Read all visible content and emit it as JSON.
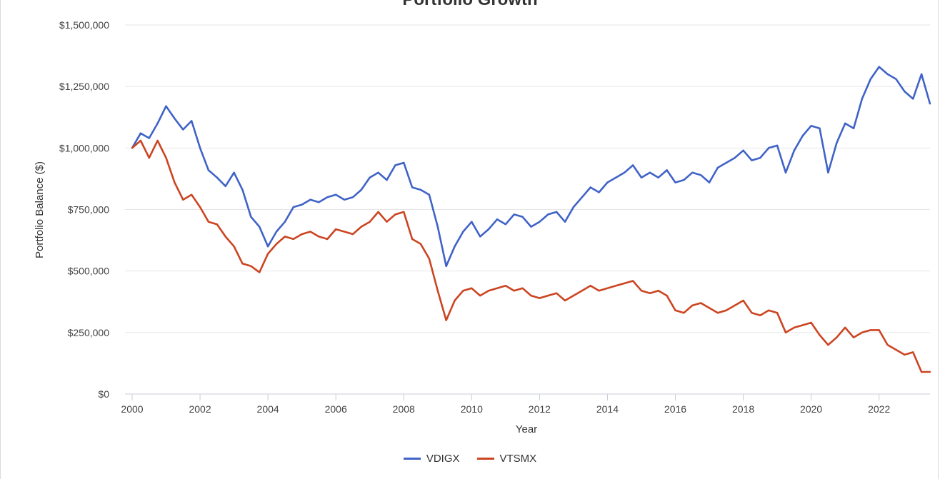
{
  "chart_data": {
    "type": "line",
    "title": "Portfolio Growth",
    "xlabel": "Year",
    "ylabel": "Portfolio Balance ($)",
    "xlim": [
      2000,
      2023.5
    ],
    "ylim": [
      0,
      1500000
    ],
    "x_ticks": [
      "2000",
      "2002",
      "2004",
      "2006",
      "2008",
      "2010",
      "2012",
      "2014",
      "2016",
      "2018",
      "2020",
      "2022"
    ],
    "y_ticks": [
      "$0",
      "$250,000",
      "$500,000",
      "$750,000",
      "$1,000,000",
      "$1,250,000",
      "$1,500,000"
    ],
    "grid": true,
    "legend_position": "bottom",
    "x": [
      2000.0,
      2000.25,
      2000.5,
      2000.75,
      2001.0,
      2001.25,
      2001.5,
      2001.75,
      2002.0,
      2002.25,
      2002.5,
      2002.75,
      2003.0,
      2003.25,
      2003.5,
      2003.75,
      2004.0,
      2004.25,
      2004.5,
      2004.75,
      2005.0,
      2005.25,
      2005.5,
      2005.75,
      2006.0,
      2006.25,
      2006.5,
      2006.75,
      2007.0,
      2007.25,
      2007.5,
      2007.75,
      2008.0,
      2008.25,
      2008.5,
      2008.75,
      2009.0,
      2009.25,
      2009.5,
      2009.75,
      2010.0,
      2010.25,
      2010.5,
      2010.75,
      2011.0,
      2011.25,
      2011.5,
      2011.75,
      2012.0,
      2012.25,
      2012.5,
      2012.75,
      2013.0,
      2013.25,
      2013.5,
      2013.75,
      2014.0,
      2014.25,
      2014.5,
      2014.75,
      2015.0,
      2015.25,
      2015.5,
      2015.75,
      2016.0,
      2016.25,
      2016.5,
      2016.75,
      2017.0,
      2017.25,
      2017.5,
      2017.75,
      2018.0,
      2018.25,
      2018.5,
      2018.75,
      2019.0,
      2019.25,
      2019.5,
      2019.75,
      2020.0,
      2020.25,
      2020.5,
      2020.75,
      2021.0,
      2021.25,
      2021.5,
      2021.75,
      2022.0,
      2022.25,
      2022.5,
      2022.75,
      2023.0,
      2023.25,
      2023.5
    ],
    "series": [
      {
        "name": "VDIGX",
        "color": "#4063c7",
        "values": [
          1000000,
          1060000,
          1040000,
          1100000,
          1170000,
          1120000,
          1075000,
          1110000,
          1000000,
          910000,
          880000,
          845000,
          900000,
          830000,
          720000,
          680000,
          600000,
          660000,
          700000,
          760000,
          770000,
          790000,
          780000,
          800000,
          810000,
          790000,
          800000,
          830000,
          880000,
          900000,
          870000,
          930000,
          940000,
          840000,
          830000,
          810000,
          680000,
          520000,
          600000,
          660000,
          700000,
          640000,
          670000,
          710000,
          690000,
          730000,
          720000,
          680000,
          700000,
          730000,
          740000,
          700000,
          760000,
          800000,
          840000,
          820000,
          860000,
          880000,
          900000,
          930000,
          880000,
          900000,
          880000,
          910000,
          860000,
          870000,
          900000,
          890000,
          860000,
          920000,
          940000,
          960000,
          990000,
          950000,
          960000,
          1000000,
          1010000,
          900000,
          990000,
          1050000,
          1090000,
          1080000,
          900000,
          1020000,
          1100000,
          1080000,
          1200000,
          1280000,
          1330000,
          1300000,
          1280000,
          1230000,
          1200000,
          1300000,
          1180000
        ]
      },
      {
        "name": "VTSMX",
        "color": "#cc4522",
        "values": [
          1000000,
          1030000,
          960000,
          1030000,
          960000,
          860000,
          790000,
          810000,
          760000,
          700000,
          690000,
          640000,
          600000,
          530000,
          520000,
          495000,
          570000,
          610000,
          640000,
          630000,
          650000,
          660000,
          640000,
          630000,
          670000,
          660000,
          650000,
          680000,
          700000,
          740000,
          700000,
          730000,
          740000,
          630000,
          610000,
          550000,
          420000,
          300000,
          380000,
          420000,
          430000,
          400000,
          420000,
          430000,
          440000,
          420000,
          430000,
          400000,
          390000,
          400000,
          410000,
          380000,
          400000,
          420000,
          440000,
          420000,
          430000,
          440000,
          450000,
          460000,
          420000,
          410000,
          420000,
          400000,
          340000,
          330000,
          360000,
          370000,
          350000,
          330000,
          340000,
          360000,
          380000,
          330000,
          320000,
          340000,
          330000,
          250000,
          270000,
          280000,
          290000,
          240000,
          200000,
          230000,
          270000,
          230000,
          250000,
          260000,
          260000,
          200000,
          180000,
          160000,
          170000,
          90000,
          90000
        ]
      }
    ]
  }
}
